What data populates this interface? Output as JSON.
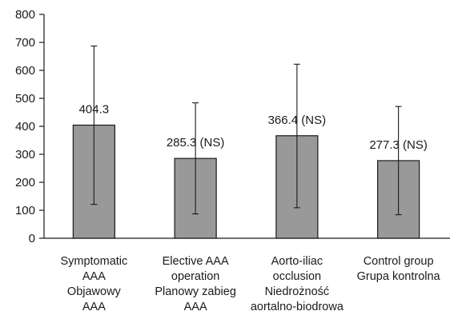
{
  "chart_data": {
    "type": "bar",
    "title": "",
    "xlabel": "",
    "ylabel": "",
    "ylim": [
      0,
      800
    ],
    "yticks": [
      0,
      100,
      200,
      300,
      400,
      500,
      600,
      700,
      800
    ],
    "grid": false,
    "legend": "none",
    "bar_color": "#999999",
    "categories": [
      [
        "Symptomatic",
        "AAA",
        "Objawowy",
        "AAA"
      ],
      [
        "Elective AAA",
        "operation",
        "Planowy zabieg",
        "AAA"
      ],
      [
        "Aorto-iliac",
        "occlusion",
        "Niedrożność",
        "aortalno-biodrowa"
      ],
      [
        "Control group",
        "Grupa kontrolna"
      ]
    ],
    "values": [
      404.3,
      285.3,
      366.4,
      277.3
    ],
    "error_low": [
      121,
      87,
      109,
      84
    ],
    "error_high": [
      687,
      484,
      622,
      471
    ],
    "data_labels": [
      "404.3",
      "285.3 (NS)",
      "366.4 (NS)",
      "277.3 (NS)"
    ]
  }
}
